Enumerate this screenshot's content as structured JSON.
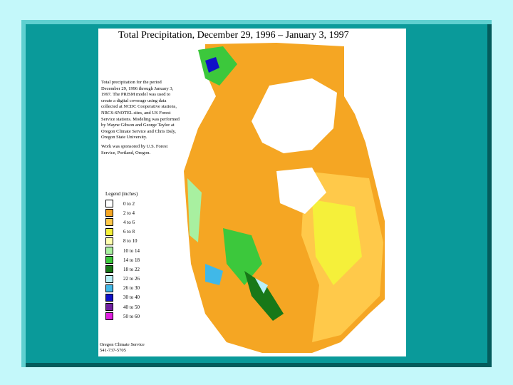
{
  "title": "Total Precipitation, December 29, 1996 – January 3, 1997",
  "description": "Total precipitation for the period December 29, 1996 through January 3, 1997. The PRISM model was used to create a digital coverage using data collected at NCDC Cooperative stations, NRCS-SNOTEL sites, and US Forest Service stations. Modeling was performed by Wayne Gibson and George Taylor at Oregon Climate Service and Chris Daly, Oregon State University.",
  "sponsor": "Work was sponsored by U.S. Forest Service, Portland, Oregon.",
  "legend": {
    "title": "Legend (inches)",
    "items": [
      {
        "label": "0 to 2",
        "color": "#ffffff"
      },
      {
        "label": "2 to 4",
        "color": "#f5a623"
      },
      {
        "label": "4 to 6",
        "color": "#ffc94a"
      },
      {
        "label": "6 to 8",
        "color": "#f5f03a"
      },
      {
        "label": "8 to 10",
        "color": "#ffffb0"
      },
      {
        "label": "10 to 14",
        "color": "#a8f0a0"
      },
      {
        "label": "14 to 18",
        "color": "#3cc83c"
      },
      {
        "label": "18 to 22",
        "color": "#187818"
      },
      {
        "label": "22 to 26",
        "color": "#b8f0f8"
      },
      {
        "label": "26 to 30",
        "color": "#40b8e8"
      },
      {
        "label": "30 to 40",
        "color": "#1010c8"
      },
      {
        "label": "40 to 50",
        "color": "#7020a0"
      },
      {
        "label": "50 to 60",
        "color": "#e020e0"
      }
    ]
  },
  "credit": [
    "Oregon Climate Service",
    "541-737-5705"
  ]
}
